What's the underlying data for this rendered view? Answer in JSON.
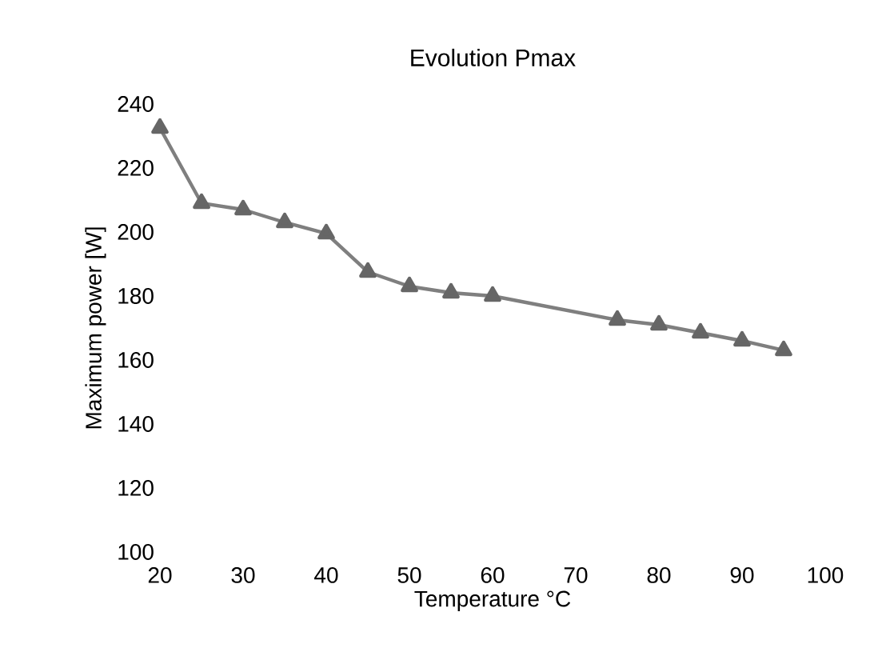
{
  "chart_data": {
    "type": "line",
    "title": "Evolution Pmax",
    "xlabel": "Temperature °C",
    "ylabel": "Maximum power [W]",
    "x": [
      20,
      25,
      30,
      35,
      40,
      45,
      50,
      55,
      60,
      75,
      80,
      85,
      90,
      95
    ],
    "series": [
      {
        "color": "#7f7f7f",
        "values": [
          232.5,
          209,
          207,
          203,
          199.5,
          187.5,
          183,
          181,
          180,
          172.5,
          171,
          168.5,
          166,
          163
        ]
      }
    ],
    "xlim": [
      20,
      100
    ],
    "xticks": [
      20,
      30,
      40,
      50,
      60,
      70,
      80,
      90,
      100
    ],
    "ylim": [
      100,
      240
    ],
    "yticks": [
      100,
      120,
      140,
      160,
      180,
      200,
      220,
      240
    ],
    "marker": "triangle",
    "line_style": "solid"
  }
}
